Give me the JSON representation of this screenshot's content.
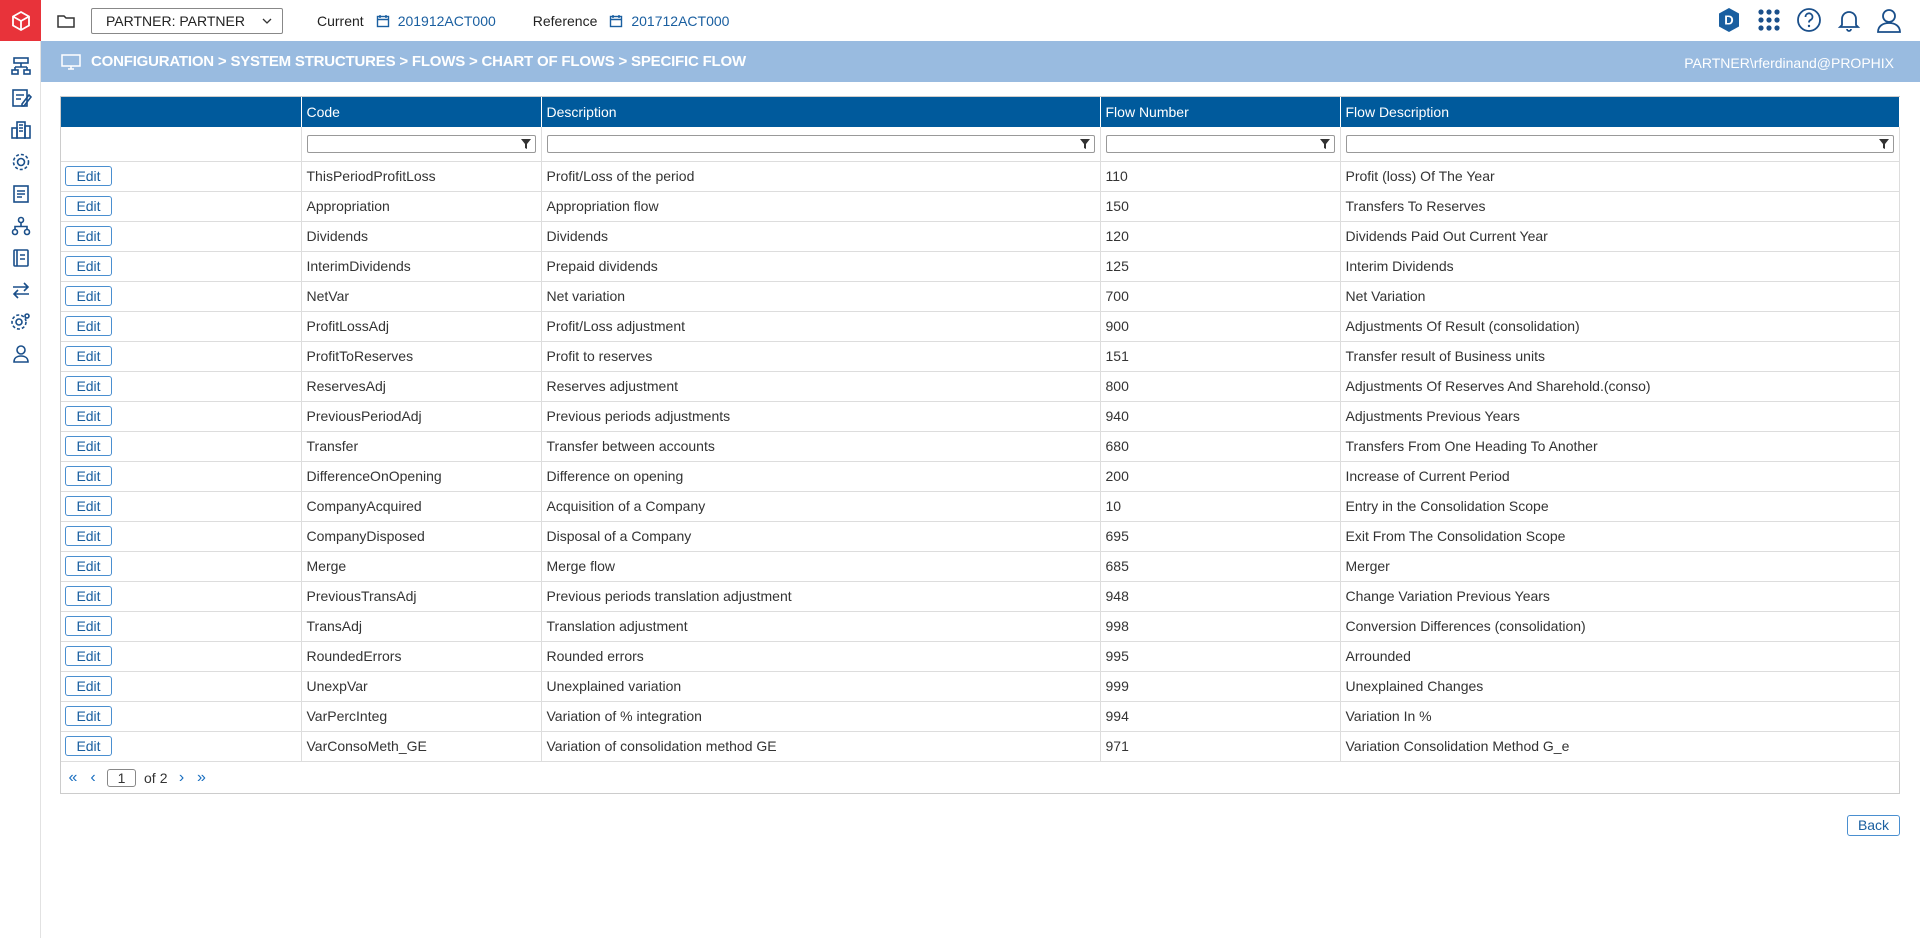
{
  "header": {
    "partner_select": "PARTNER: PARTNER",
    "current_label": "Current",
    "current_period": "201912ACT000",
    "reference_label": "Reference",
    "reference_period": "201712ACT000",
    "avatar_letter": "D"
  },
  "breadcrumb": {
    "path": "CONFIGURATION > SYSTEM STRUCTURES > FLOWS > CHART OF FLOWS > SPECIFIC FLOW",
    "user": "PARTNER\\rferdinand@PROPHIX"
  },
  "table": {
    "columns": [
      "",
      "Code",
      "Description",
      "Flow Number",
      "Flow Description"
    ],
    "edit_label": "Edit",
    "rows": [
      {
        "code": "ThisPeriodProfitLoss",
        "description": "Profit/Loss of the period",
        "flow_number": "110",
        "flow_description": "Profit (loss) Of The Year"
      },
      {
        "code": "Appropriation",
        "description": "Appropriation flow",
        "flow_number": "150",
        "flow_description": "Transfers To Reserves"
      },
      {
        "code": "Dividends",
        "description": "Dividends",
        "flow_number": "120",
        "flow_description": "Dividends Paid Out Current Year"
      },
      {
        "code": "InterimDividends",
        "description": "Prepaid dividends",
        "flow_number": "125",
        "flow_description": "Interim Dividends"
      },
      {
        "code": "NetVar",
        "description": "Net variation",
        "flow_number": "700",
        "flow_description": "Net Variation"
      },
      {
        "code": "ProfitLossAdj",
        "description": "Profit/Loss adjustment",
        "flow_number": "900",
        "flow_description": "Adjustments Of Result (consolidation)"
      },
      {
        "code": "ProfitToReserves",
        "description": "Profit to reserves",
        "flow_number": "151",
        "flow_description": "Transfer result of Business units"
      },
      {
        "code": "ReservesAdj",
        "description": "Reserves adjustment",
        "flow_number": "800",
        "flow_description": "Adjustments Of Reserves And Sharehold.(conso)"
      },
      {
        "code": "PreviousPeriodAdj",
        "description": "Previous periods adjustments",
        "flow_number": "940",
        "flow_description": "Adjustments Previous Years"
      },
      {
        "code": "Transfer",
        "description": "Transfer between accounts",
        "flow_number": "680",
        "flow_description": "Transfers From One Heading To Another"
      },
      {
        "code": "DifferenceOnOpening",
        "description": "Difference on opening",
        "flow_number": "200",
        "flow_description": "Increase of Current Period"
      },
      {
        "code": "CompanyAcquired",
        "description": "Acquisition of a Company",
        "flow_number": "10",
        "flow_description": "Entry in the Consolidation Scope"
      },
      {
        "code": "CompanyDisposed",
        "description": "Disposal of a Company",
        "flow_number": "695",
        "flow_description": "Exit From The Consolidation Scope"
      },
      {
        "code": "Merge",
        "description": "Merge flow",
        "flow_number": "685",
        "flow_description": "Merger"
      },
      {
        "code": "PreviousTransAdj",
        "description": "Previous periods translation adjustment",
        "flow_number": "948",
        "flow_description": "Change Variation Previous Years"
      },
      {
        "code": "TransAdj",
        "description": "Translation adjustment",
        "flow_number": "998",
        "flow_description": "Conversion Differences (consolidation)"
      },
      {
        "code": "RoundedErrors",
        "description": "Rounded errors",
        "flow_number": "995",
        "flow_description": "Arrounded"
      },
      {
        "code": "UnexpVar",
        "description": "Unexplained variation",
        "flow_number": "999",
        "flow_description": "Unexplained Changes"
      },
      {
        "code": "VarPercInteg",
        "description": "Variation of % integration",
        "flow_number": "994",
        "flow_description": "Variation In %"
      },
      {
        "code": "VarConsoMeth_GE",
        "description": "Variation of consolidation method GE",
        "flow_number": "971",
        "flow_description": "Variation Consolidation Method G_e"
      }
    ]
  },
  "pager": {
    "current_page": "1",
    "of_label": "of",
    "total_pages": "2"
  },
  "footer": {
    "back_label": "Back"
  },
  "colors": {
    "accent": "#005a9c",
    "band": "#99bbe0",
    "logo": "#e8333a",
    "link": "#1a5fa0"
  },
  "icons": [
    "structure-icon",
    "form-icon",
    "building-icon",
    "settings-gear-icon",
    "report-icon",
    "hierarchy-icon",
    "book-icon",
    "transfer-icon",
    "cogs-icon",
    "user-tree-icon"
  ]
}
